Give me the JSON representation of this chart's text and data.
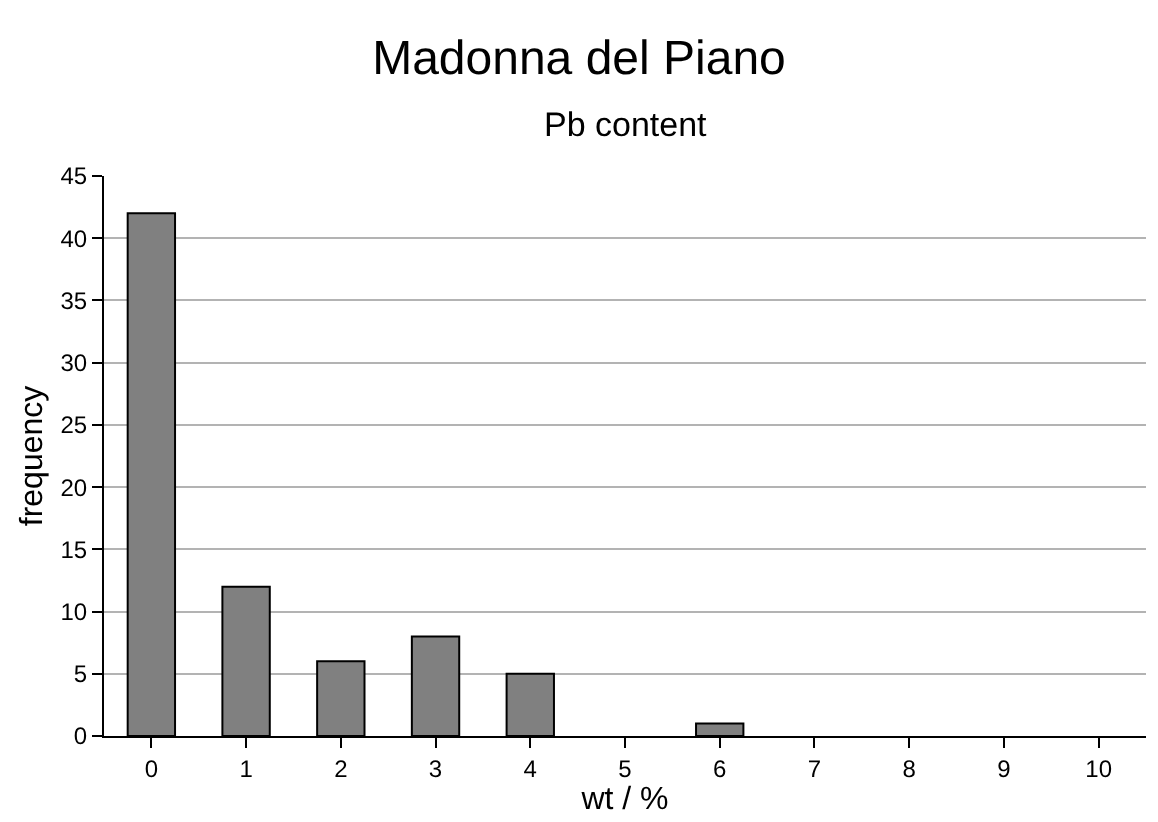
{
  "chart_data": {
    "type": "bar",
    "title": "Madonna del Piano",
    "subtitle": "Pb content",
    "xlabel": "wt / %",
    "ylabel": "frequency",
    "categories": [
      "0",
      "1",
      "2",
      "3",
      "4",
      "5",
      "6",
      "7",
      "8",
      "9",
      "10"
    ],
    "values": [
      42,
      12,
      6,
      8,
      5,
      0,
      1,
      0,
      0,
      0,
      0
    ],
    "color": "#808080",
    "ylim": [
      0,
      45
    ],
    "yticks": [
      0,
      5,
      10,
      15,
      20,
      25,
      30,
      35,
      40,
      45
    ],
    "grid": "y",
    "legend": false
  }
}
